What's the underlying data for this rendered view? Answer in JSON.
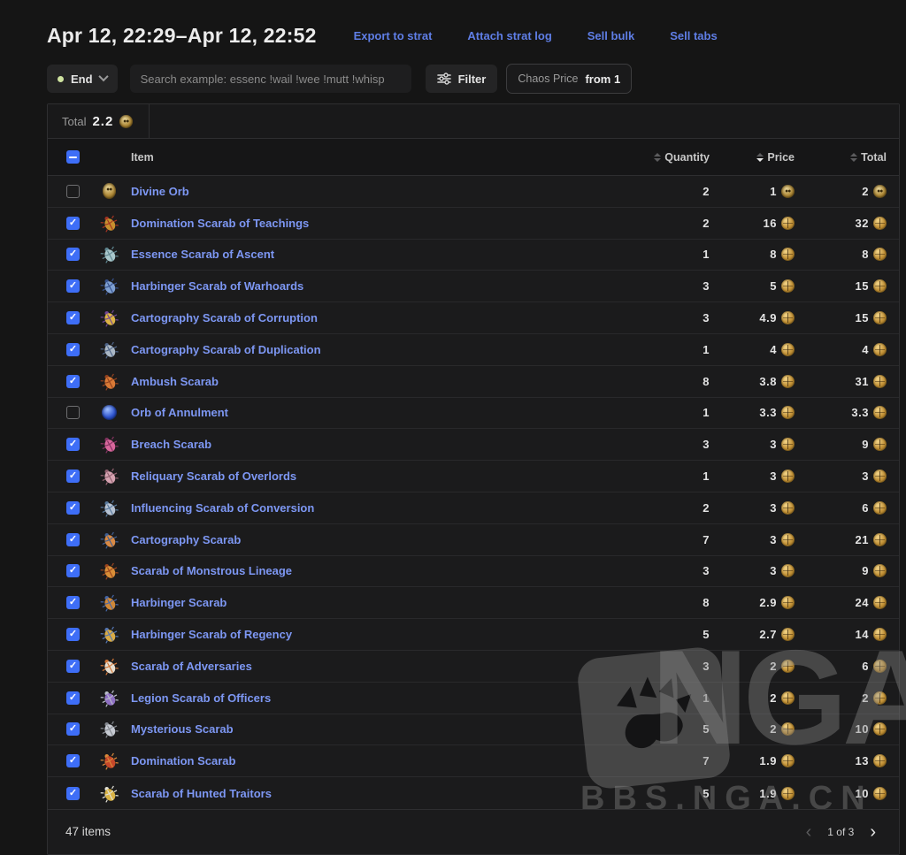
{
  "header": {
    "title": "Apr 12, 22:29–Apr 12, 22:52",
    "links": [
      "Export to strat",
      "Attach strat log",
      "Sell bulk",
      "Sell tabs"
    ]
  },
  "controls": {
    "status_label": "End",
    "search_placeholder": "Search example: essenc !wail !wee !mutt !whisp",
    "filter_label": "Filter",
    "price_filter": {
      "label": "Chaos Price",
      "value": "from 1"
    }
  },
  "table": {
    "total_label": "Total",
    "total_value": "2.2",
    "total_currency": "divine",
    "columns": {
      "item": "Item",
      "quantity": "Quantity",
      "price": "Price",
      "total": "Total"
    },
    "sorted": {
      "column": "Price",
      "direction": "desc"
    },
    "rows": [
      {
        "name": "Divine Orb",
        "checked": false,
        "qty": "2",
        "price": "1",
        "total": "2",
        "currency": "divine",
        "icon": {
          "type": "divine"
        }
      },
      {
        "name": "Domination Scarab of Teachings",
        "checked": true,
        "qty": "2",
        "price": "16",
        "total": "32",
        "currency": "chaos",
        "icon": {
          "type": "scarab",
          "c1": "#c8902e",
          "c2": "#a33322"
        }
      },
      {
        "name": "Essence Scarab of Ascent",
        "checked": true,
        "qty": "1",
        "price": "8",
        "total": "8",
        "currency": "chaos",
        "icon": {
          "type": "scarab",
          "c1": "#a9c8cc",
          "c2": "#5f8690"
        }
      },
      {
        "name": "Harbinger Scarab of Warhoards",
        "checked": true,
        "qty": "3",
        "price": "5",
        "total": "15",
        "currency": "chaos",
        "icon": {
          "type": "scarab",
          "c1": "#7e9fd2",
          "c2": "#35508c"
        }
      },
      {
        "name": "Cartography Scarab of Corruption",
        "checked": true,
        "qty": "3",
        "price": "4.9",
        "total": "15",
        "currency": "chaos",
        "icon": {
          "type": "scarab",
          "c1": "#dcb345",
          "c2": "#6f4694"
        }
      },
      {
        "name": "Cartography Scarab of Duplication",
        "checked": true,
        "qty": "1",
        "price": "4",
        "total": "4",
        "currency": "chaos",
        "icon": {
          "type": "scarab",
          "c1": "#aab7c5",
          "c2": "#4e6488"
        }
      },
      {
        "name": "Ambush Scarab",
        "checked": true,
        "qty": "8",
        "price": "3.8",
        "total": "31",
        "currency": "chaos",
        "icon": {
          "type": "scarab",
          "c1": "#d97a36",
          "c2": "#93421f"
        }
      },
      {
        "name": "Orb of Annulment",
        "checked": false,
        "qty": "1",
        "price": "3.3",
        "total": "3.3",
        "currency": "chaos",
        "icon": {
          "type": "annul"
        }
      },
      {
        "name": "Breach Scarab",
        "checked": true,
        "qty": "3",
        "price": "3",
        "total": "9",
        "currency": "chaos",
        "icon": {
          "type": "scarab",
          "c1": "#d9679c",
          "c2": "#833360"
        }
      },
      {
        "name": "Reliquary Scarab of Overlords",
        "checked": true,
        "qty": "1",
        "price": "3",
        "total": "3",
        "currency": "chaos",
        "icon": {
          "type": "scarab",
          "c1": "#d6a3b1",
          "c2": "#8f5f6e"
        }
      },
      {
        "name": "Influencing Scarab of Conversion",
        "checked": true,
        "qty": "2",
        "price": "3",
        "total": "6",
        "currency": "chaos",
        "icon": {
          "type": "scarab",
          "c1": "#b6c2d2",
          "c2": "#56789c"
        }
      },
      {
        "name": "Cartography Scarab",
        "checked": true,
        "qty": "7",
        "price": "3",
        "total": "21",
        "currency": "chaos",
        "icon": {
          "type": "scarab",
          "c1": "#d98a44",
          "c2": "#3e5f93"
        }
      },
      {
        "name": "Scarab of Monstrous Lineage",
        "checked": true,
        "qty": "3",
        "price": "3",
        "total": "9",
        "currency": "chaos",
        "icon": {
          "type": "scarab",
          "c1": "#d98e37",
          "c2": "#99441f"
        }
      },
      {
        "name": "Harbinger Scarab",
        "checked": true,
        "qty": "8",
        "price": "2.9",
        "total": "24",
        "currency": "chaos",
        "icon": {
          "type": "scarab",
          "c1": "#cf8838",
          "c2": "#4566a8"
        }
      },
      {
        "name": "Harbinger Scarab of Regency",
        "checked": true,
        "qty": "5",
        "price": "2.7",
        "total": "14",
        "currency": "chaos",
        "icon": {
          "type": "scarab",
          "c1": "#d9ab45",
          "c2": "#5577b3"
        }
      },
      {
        "name": "Scarab of Adversaries",
        "checked": true,
        "qty": "3",
        "price": "2",
        "total": "6",
        "currency": "chaos",
        "icon": {
          "type": "scarab",
          "c1": "#e6ded0",
          "c2": "#cf7334"
        }
      },
      {
        "name": "Legion Scarab of Officers",
        "checked": true,
        "qty": "1",
        "price": "2",
        "total": "2",
        "currency": "chaos",
        "icon": {
          "type": "scarab",
          "c1": "#8f6fc4",
          "c2": "#b9bec8"
        }
      },
      {
        "name": "Mysterious Scarab",
        "checked": true,
        "qty": "5",
        "price": "2",
        "total": "10",
        "currency": "chaos",
        "icon": {
          "type": "scarab",
          "c1": "#c6cad2",
          "c2": "#84888f"
        }
      },
      {
        "name": "Domination Scarab",
        "checked": true,
        "qty": "7",
        "price": "1.9",
        "total": "13",
        "currency": "chaos",
        "icon": {
          "type": "scarab",
          "c1": "#c6472a",
          "c2": "#d98a3a"
        }
      },
      {
        "name": "Scarab of Hunted Traitors",
        "checked": true,
        "qty": "5",
        "price": "1.9",
        "total": "10",
        "currency": "chaos",
        "icon": {
          "type": "scarab",
          "c1": "#d9b345",
          "c2": "#e3e2d8"
        }
      }
    ]
  },
  "footer": {
    "items_count": "47 items",
    "page_label": "1 of 3",
    "prev_glyph": "‹",
    "next_glyph": "›"
  },
  "watermark": {
    "logo": "NGA",
    "site": "BBS.NGA.CN"
  },
  "colors": {
    "accent_blue": "#3e6ef7",
    "link_blue": "#7d97f3",
    "header_link_blue": "#5f7ee6",
    "status_green": "#cfe3a0"
  }
}
